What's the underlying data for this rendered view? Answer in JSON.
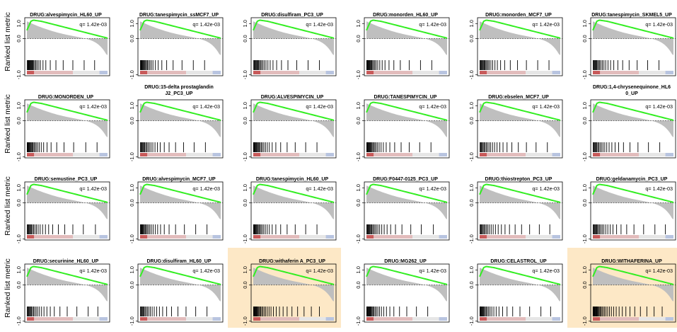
{
  "y_axis_label": "Ranked list metric",
  "y_ticks": [
    "1.0",
    "0.0",
    "-1.0"
  ],
  "colors": {
    "es_curve": "#33ee22",
    "rank_metric": "#bfbfbf",
    "hits": "#000000",
    "highlight_bg": "#fde8c6",
    "bar_red": "#c85a5a",
    "bar_pink": "#e2bcbc",
    "bar_gray": "#e6e6e6",
    "bar_blue": "#b8c4e0"
  },
  "panels": [
    {
      "title": [
        "DRUG:alvespimycin_HL60_UP"
      ],
      "q": "q= 1.42e-03",
      "highlight": false,
      "hits": [
        0.005,
        0.012,
        0.019,
        0.026,
        0.034,
        0.041,
        0.049,
        0.057,
        0.066,
        0.075,
        0.085,
        0.098,
        0.112,
        0.128,
        0.148,
        0.168,
        0.2,
        0.235,
        0.29,
        0.36,
        0.45,
        0.57,
        0.71,
        0.84
      ]
    },
    {
      "title": [
        "DRUG:tanespimycin_ssMCF7_UP"
      ],
      "q": "q= 1.42e-03",
      "highlight": false,
      "hits": [
        0.004,
        0.011,
        0.018,
        0.025,
        0.033,
        0.041,
        0.05,
        0.059,
        0.069,
        0.08,
        0.092,
        0.106,
        0.122,
        0.14,
        0.16,
        0.19,
        0.225,
        0.27,
        0.33,
        0.41,
        0.52,
        0.66,
        0.8
      ]
    },
    {
      "title": [
        "DRUG:disulfiram_PC3_UP"
      ],
      "q": "q= 1.42e-03",
      "highlight": false,
      "hits": [
        0.006,
        0.013,
        0.021,
        0.029,
        0.038,
        0.047,
        0.057,
        0.067,
        0.078,
        0.09,
        0.104,
        0.12,
        0.138,
        0.158,
        0.182,
        0.21,
        0.245,
        0.29,
        0.35,
        0.43,
        0.54,
        0.68,
        0.82
      ]
    },
    {
      "title": [
        "DRUG:monorden_HL60_UP"
      ],
      "q": "q= 1.42e-03",
      "highlight": false,
      "hits": [
        0.004,
        0.01,
        0.017,
        0.024,
        0.031,
        0.039,
        0.047,
        0.056,
        0.066,
        0.077,
        0.09,
        0.104,
        0.12,
        0.14,
        0.165,
        0.195,
        0.23,
        0.28,
        0.34,
        0.42,
        0.53,
        0.67,
        0.81
      ]
    },
    {
      "title": [
        "DRUG:monorden_MCF7_UP"
      ],
      "q": "q= 1.42e-03",
      "highlight": false,
      "hits": [
        0.005,
        0.012,
        0.02,
        0.028,
        0.037,
        0.046,
        0.056,
        0.066,
        0.078,
        0.09,
        0.105,
        0.12,
        0.14,
        0.162,
        0.19,
        0.22,
        0.26,
        0.31,
        0.38,
        0.47,
        0.58,
        0.72,
        0.86
      ]
    },
    {
      "title": [
        "DRUG:tanespimycin_SKMEL5_UP"
      ],
      "q": "q= 1.42e-03",
      "highlight": false,
      "hits": [
        0.005,
        0.013,
        0.021,
        0.03,
        0.039,
        0.049,
        0.06,
        0.072,
        0.085,
        0.1,
        0.118,
        0.138,
        0.16,
        0.188,
        0.22,
        0.26,
        0.31,
        0.37,
        0.45,
        0.55,
        0.68,
        0.82
      ]
    },
    {
      "title": [
        "DRUG:MONORDEN_UP"
      ],
      "q": "q= 1.42e-03",
      "highlight": false,
      "hits": [
        0.004,
        0.01,
        0.016,
        0.023,
        0.03,
        0.038,
        0.046,
        0.055,
        0.065,
        0.076,
        0.088,
        0.101,
        0.116,
        0.134,
        0.154,
        0.178,
        0.208,
        0.25,
        0.3,
        0.37,
        0.46,
        0.58,
        0.73,
        0.87
      ]
    },
    {
      "title": [
        "DRUG:15-delta prostaglandin",
        "J2_PC3_UP"
      ],
      "q": "q= 1.42e-03",
      "highlight": false,
      "hits": [
        0.005,
        0.012,
        0.02,
        0.028,
        0.037,
        0.047,
        0.058,
        0.07,
        0.083,
        0.098,
        0.115,
        0.135,
        0.158,
        0.185,
        0.215,
        0.25,
        0.3,
        0.36,
        0.44,
        0.54,
        0.67,
        0.81
      ]
    },
    {
      "title": [
        "DRUG:ALVESPIMYCIN_UP"
      ],
      "q": "q= 1.42e-03",
      "highlight": false,
      "hits": [
        0.003,
        0.009,
        0.015,
        0.022,
        0.029,
        0.037,
        0.045,
        0.054,
        0.064,
        0.075,
        0.087,
        0.1,
        0.115,
        0.132,
        0.152,
        0.175,
        0.2,
        0.235,
        0.28,
        0.34,
        0.42,
        0.52,
        0.65,
        0.79
      ]
    },
    {
      "title": [
        "DRUG:TANESPIMYCIN_UP"
      ],
      "q": "q= 1.42e-03",
      "highlight": false,
      "hits": [
        0.004,
        0.01,
        0.017,
        0.024,
        0.032,
        0.04,
        0.049,
        0.058,
        0.068,
        0.079,
        0.091,
        0.105,
        0.12,
        0.138,
        0.158,
        0.182,
        0.21,
        0.245,
        0.29,
        0.35,
        0.43,
        0.53,
        0.66,
        0.8
      ]
    },
    {
      "title": [
        "DRUG:ebselen_MCF7_UP"
      ],
      "q": "q= 1.42e-03",
      "highlight": false,
      "hits": [
        0.006,
        0.014,
        0.023,
        0.033,
        0.044,
        0.056,
        0.069,
        0.083,
        0.099,
        0.117,
        0.137,
        0.16,
        0.186,
        0.216,
        0.25,
        0.29,
        0.34,
        0.4,
        0.48,
        0.58,
        0.7,
        0.84
      ]
    },
    {
      "title": [
        "DRUG:1,4-chrysenequinone_HL6",
        "0_UP"
      ],
      "q": "q= 1.42e-03",
      "highlight": false,
      "hits": [
        0.005,
        0.012,
        0.02,
        0.029,
        0.039,
        0.05,
        0.062,
        0.075,
        0.09,
        0.107,
        0.126,
        0.148,
        0.173,
        0.202,
        0.236,
        0.276,
        0.32,
        0.38,
        0.46,
        0.56,
        0.69,
        0.83
      ]
    },
    {
      "title": [
        "DRUG:semustine_PC3_UP"
      ],
      "q": "q= 1.42e-03",
      "highlight": false,
      "hits": [
        0.005,
        0.012,
        0.02,
        0.028,
        0.037,
        0.047,
        0.058,
        0.07,
        0.084,
        0.1,
        0.118,
        0.14,
        0.165,
        0.195,
        0.23,
        0.27,
        0.32,
        0.39,
        0.47,
        0.57,
        0.7,
        0.85
      ]
    },
    {
      "title": [
        "DRUG:alvespimycin_MCF7_UP"
      ],
      "q": "q= 1.42e-03",
      "highlight": false,
      "hits": [
        0.004,
        0.011,
        0.018,
        0.026,
        0.034,
        0.043,
        0.053,
        0.064,
        0.076,
        0.089,
        0.104,
        0.121,
        0.14,
        0.162,
        0.188,
        0.218,
        0.254,
        0.3,
        0.36,
        0.44,
        0.55,
        0.69,
        0.83
      ]
    },
    {
      "title": [
        "DRUG:tanespimycin_HL60_UP"
      ],
      "q": "q= 1.42e-03",
      "highlight": false,
      "hits": [
        0.004,
        0.01,
        0.017,
        0.024,
        0.032,
        0.041,
        0.05,
        0.06,
        0.071,
        0.083,
        0.097,
        0.112,
        0.13,
        0.15,
        0.174,
        0.2,
        0.235,
        0.28,
        0.34,
        0.42,
        0.52,
        0.65,
        0.79
      ]
    },
    {
      "title": [
        "DRUG:F0447-0125_PC3_UP"
      ],
      "q": "q= 1.42e-03",
      "highlight": false,
      "hits": [
        0.005,
        0.012,
        0.019,
        0.027,
        0.036,
        0.045,
        0.055,
        0.066,
        0.078,
        0.091,
        0.106,
        0.123,
        0.142,
        0.164,
        0.19,
        0.22,
        0.256,
        0.3,
        0.36,
        0.44,
        0.55,
        0.68,
        0.83
      ]
    },
    {
      "title": [
        "DRUG:thiostrepton_PC3_UP"
      ],
      "q": "q= 1.42e-03",
      "highlight": false,
      "hits": [
        0.006,
        0.014,
        0.023,
        0.033,
        0.044,
        0.056,
        0.07,
        0.085,
        0.102,
        0.121,
        0.143,
        0.168,
        0.196,
        0.23,
        0.27,
        0.315,
        0.37,
        0.44,
        0.52,
        0.62,
        0.74,
        0.87
      ]
    },
    {
      "title": [
        "DRUG:geldanamycin_PC3_UP"
      ],
      "q": "q= 1.42e-03",
      "highlight": false,
      "hits": [
        0.005,
        0.012,
        0.02,
        0.029,
        0.038,
        0.048,
        0.059,
        0.071,
        0.085,
        0.1,
        0.117,
        0.137,
        0.16,
        0.186,
        0.216,
        0.25,
        0.295,
        0.35,
        0.42,
        0.51,
        0.63,
        0.77,
        0.9
      ]
    },
    {
      "title": [
        "DRUG:securinine_HL60_UP"
      ],
      "q": "q= 1.42e-03",
      "highlight": false,
      "hits": [
        0.005,
        0.012,
        0.02,
        0.028,
        0.037,
        0.047,
        0.058,
        0.07,
        0.083,
        0.098,
        0.115,
        0.134,
        0.156,
        0.182,
        0.212,
        0.248,
        0.29,
        0.34,
        0.41,
        0.5,
        0.62,
        0.76,
        0.88
      ]
    },
    {
      "title": [
        "DRUG:disulfiram_HL60_UP"
      ],
      "q": "q= 1.42e-03",
      "highlight": false,
      "hits": [
        0.005,
        0.012,
        0.02,
        0.029,
        0.039,
        0.05,
        0.062,
        0.076,
        0.091,
        0.108,
        0.128,
        0.15,
        0.176,
        0.206,
        0.24,
        0.28,
        0.33,
        0.39,
        0.47,
        0.57,
        0.69,
        0.83
      ]
    },
    {
      "title": [
        "DRUG:withaferin A_PC3_UP"
      ],
      "q": "q= 1.42e-03",
      "highlight": true,
      "hits": [
        0.004,
        0.009,
        0.015,
        0.021,
        0.028,
        0.035,
        0.043,
        0.051,
        0.06,
        0.07,
        0.081,
        0.093,
        0.106,
        0.12,
        0.136,
        0.154,
        0.174,
        0.196,
        0.22,
        0.25,
        0.285,
        0.325,
        0.37,
        0.42,
        0.48,
        0.55,
        0.63,
        0.72,
        0.82
      ]
    },
    {
      "title": [
        "DRUG:MG262_UP"
      ],
      "q": "q= 1.42e-03",
      "highlight": false,
      "hits": [
        0.004,
        0.01,
        0.016,
        0.022,
        0.029,
        0.036,
        0.044,
        0.052,
        0.061,
        0.071,
        0.082,
        0.094,
        0.108,
        0.124,
        0.142,
        0.162,
        0.186,
        0.214,
        0.248,
        0.29,
        0.34,
        0.41,
        0.5,
        0.62,
        0.76
      ]
    },
    {
      "title": [
        "DRUG:CELASTROL_UP"
      ],
      "q": "q= 1.42e-03",
      "highlight": false,
      "hits": [
        0.004,
        0.01,
        0.017,
        0.024,
        0.032,
        0.04,
        0.049,
        0.059,
        0.07,
        0.082,
        0.096,
        0.112,
        0.13,
        0.151,
        0.176,
        0.205,
        0.24,
        0.285,
        0.34,
        0.41,
        0.5,
        0.62,
        0.76,
        0.88
      ]
    },
    {
      "title": [
        "DRUG:WITHAFERINA_UP"
      ],
      "q": "q= 1.42e-03",
      "highlight": true,
      "hits": [
        0.003,
        0.008,
        0.013,
        0.018,
        0.024,
        0.03,
        0.037,
        0.044,
        0.052,
        0.06,
        0.069,
        0.079,
        0.09,
        0.102,
        0.115,
        0.13,
        0.146,
        0.164,
        0.184,
        0.206,
        0.23,
        0.258,
        0.29,
        0.326,
        0.366,
        0.41,
        0.46,
        0.52,
        0.59,
        0.67,
        0.76,
        0.86
      ]
    }
  ]
}
